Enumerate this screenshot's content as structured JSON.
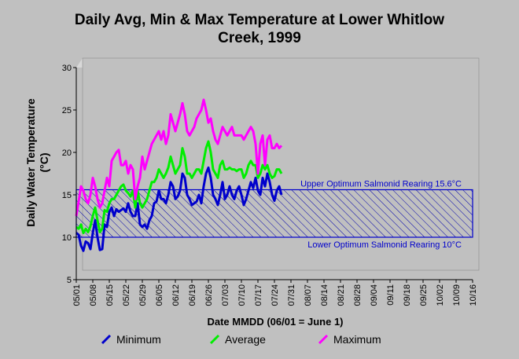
{
  "chart_data": {
    "type": "line",
    "title": "Daily Avg, Min & Max Temperature at Lower Whitlow Creek, 1999",
    "xlabel": "Date MMDD (06/01 = June 1)",
    "ylabel": "Daily Water Temperature (°C)",
    "ylim": [
      5,
      30
    ],
    "yticks": [
      5,
      10,
      15,
      20,
      25,
      30
    ],
    "xticks": [
      "05/01",
      "05/08",
      "05/15",
      "05/22",
      "05/29",
      "06/05",
      "06/12",
      "06/19",
      "06/26",
      "07/03",
      "07/10",
      "07/17",
      "07/24",
      "07/31",
      "08/07",
      "08/14",
      "08/21",
      "08/28",
      "09/04",
      "09/11",
      "09/18",
      "09/25",
      "10/02",
      "10/09",
      "10/16"
    ],
    "grid": false,
    "legend_position": "bottom",
    "annotations": [
      {
        "text": "Upper Optimum Salmonid Rearing 15.6°C",
        "value": 15.6
      },
      {
        "text": "Lower Optimum Salmonid Rearing 10°C",
        "value": 10
      }
    ],
    "series": [
      {
        "name": "Minimum",
        "color": "#0000cc",
        "values": [
          10.5,
          10.3,
          9.0,
          8.4,
          9.5,
          9.3,
          8.6,
          10.5,
          12.0,
          10.0,
          8.5,
          8.6,
          11.5,
          11.2,
          13.0,
          13.5,
          12.5,
          13.3,
          13.0,
          13.2,
          13.4,
          13.0,
          14.0,
          13.0,
          12.5,
          12.5,
          14.0,
          11.5,
          11.2,
          11.5,
          11.0,
          12.0,
          12.5,
          14.0,
          14.2,
          15.5,
          14.5,
          14.5,
          14.0,
          15.0,
          16.5,
          16.0,
          14.5,
          14.8,
          15.5,
          17.5,
          17.0,
          15.0,
          14.5,
          13.8,
          14.0,
          14.2,
          15.0,
          14.0,
          16.0,
          17.5,
          18.2,
          17.0,
          15.0,
          14.5,
          13.8,
          15.0,
          16.5,
          14.5,
          15.0,
          16.0,
          15.0,
          14.5,
          15.5,
          16.0,
          15.0,
          13.8,
          14.5,
          15.5,
          16.5,
          15.8,
          17.0,
          15.5,
          15.0,
          17.0,
          16.0,
          17.5,
          16.5,
          15.0,
          14.3,
          15.5,
          16.0,
          15.0
        ]
      },
      {
        "name": "Average",
        "color": "#00ee00",
        "values": [
          11.2,
          11.0,
          11.5,
          10.5,
          11.0,
          10.6,
          11.3,
          12.5,
          13.5,
          12.0,
          10.6,
          11.0,
          13.2,
          13.0,
          14.0,
          14.5,
          14.5,
          15.0,
          15.5,
          16.0,
          16.2,
          15.5,
          15.2,
          14.8,
          15.5,
          13.5,
          15.5,
          14.0,
          13.5,
          14.0,
          14.5,
          15.5,
          16.5,
          16.5,
          17.0,
          18.0,
          17.5,
          17.0,
          17.5,
          18.2,
          19.5,
          18.5,
          17.5,
          18.0,
          18.5,
          20.5,
          19.5,
          17.5,
          17.5,
          17.0,
          17.5,
          18.0,
          18.0,
          17.5,
          19.0,
          20.5,
          21.3,
          20.0,
          18.0,
          17.5,
          17.0,
          18.5,
          19.0,
          18.0,
          18.0,
          18.2,
          18.0,
          18.0,
          17.8,
          18.0,
          18.0,
          17.0,
          17.5,
          18.5,
          19.0,
          18.5,
          18.5,
          17.0,
          17.5,
          18.5,
          18.0,
          18.5,
          17.5,
          17.0,
          17.2,
          18.0,
          18.0,
          17.5
        ]
      },
      {
        "name": "Maximum",
        "color": "#ff00ff",
        "values": [
          12.5,
          14.2,
          16.0,
          15.5,
          14.5,
          14.0,
          15.0,
          17.0,
          16.0,
          14.5,
          13.5,
          14.0,
          15.5,
          17.0,
          16.0,
          19.0,
          19.5,
          20.0,
          20.3,
          18.5,
          18.5,
          19.0,
          17.5,
          18.5,
          18.0,
          14.5,
          16.0,
          17.0,
          19.5,
          18.0,
          19.0,
          20.0,
          21.0,
          21.5,
          22.0,
          22.5,
          21.5,
          22.5,
          21.0,
          22.0,
          24.5,
          23.5,
          22.5,
          23.5,
          24.5,
          25.8,
          24.5,
          22.5,
          22.0,
          22.5,
          23.0,
          24.0,
          24.5,
          25.0,
          26.2,
          25.0,
          23.5,
          24.0,
          22.5,
          21.5,
          21.0,
          22.0,
          23.0,
          22.5,
          22.0,
          22.5,
          23.0,
          22.0,
          22.0,
          22.0,
          22.0,
          21.5,
          22.0,
          22.5,
          23.0,
          22.5,
          21.0,
          17.5,
          21.0,
          22.0,
          18.5,
          21.5,
          22.0,
          20.5,
          20.5,
          21.0,
          20.5,
          20.8
        ]
      }
    ]
  }
}
